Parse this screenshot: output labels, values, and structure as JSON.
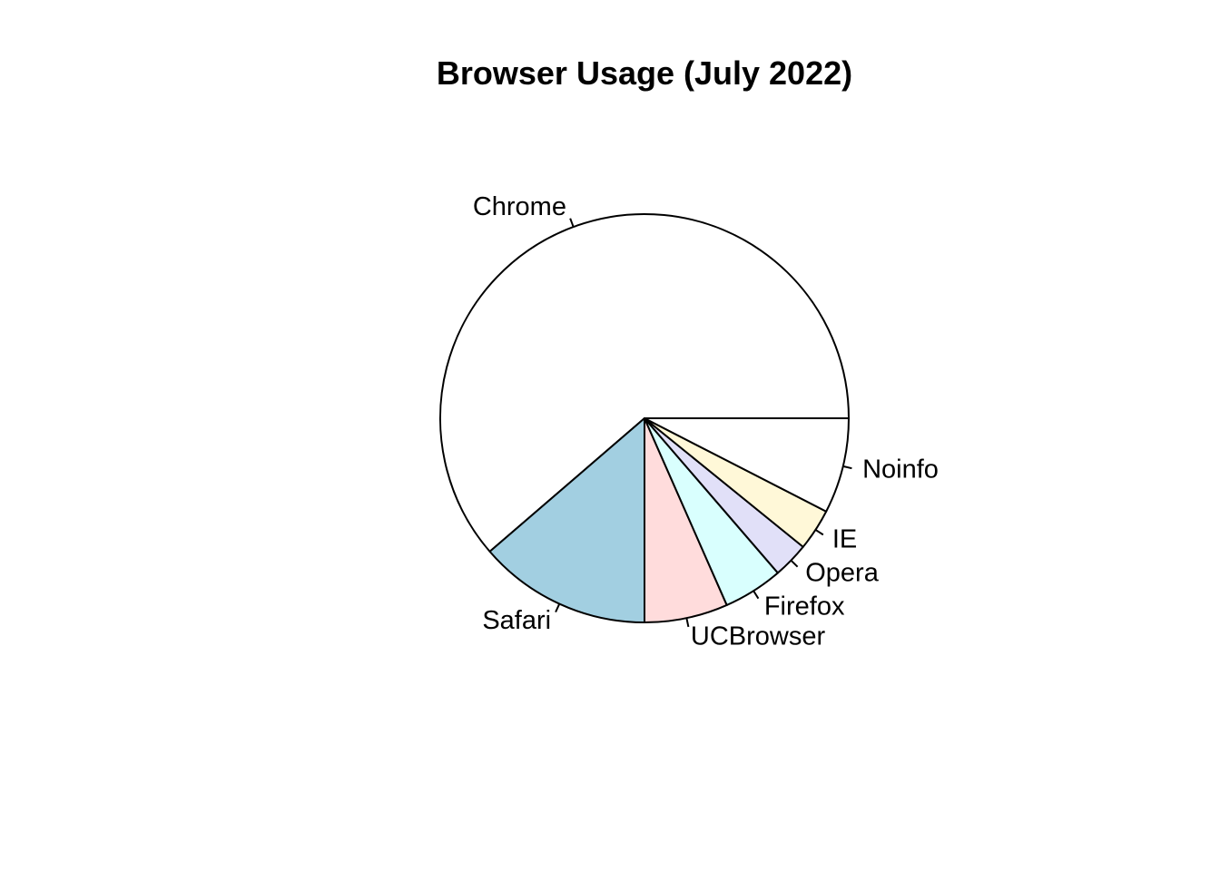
{
  "chart_data": {
    "type": "pie",
    "title": "Browser Usage (July 2022)",
    "direction": "counterclockwise",
    "start_angle_deg": 0,
    "slices": [
      {
        "label": "Chrome",
        "value": 65.0,
        "color": "#ffffff"
      },
      {
        "label": "Safari",
        "value": 14.5,
        "color": "#a2cfe1"
      },
      {
        "label": "UCBrowser",
        "value": 7.0,
        "color": "#ffdcdc"
      },
      {
        "label": "Firefox",
        "value": 5.0,
        "color": "#d9fffe"
      },
      {
        "label": "Opera",
        "value": 3.0,
        "color": "#e1e0f8"
      },
      {
        "label": "IE",
        "value": 3.5,
        "color": "#fff8d8"
      },
      {
        "label": "Noinfo",
        "value": 8.0,
        "color": "#ffffff"
      }
    ]
  }
}
